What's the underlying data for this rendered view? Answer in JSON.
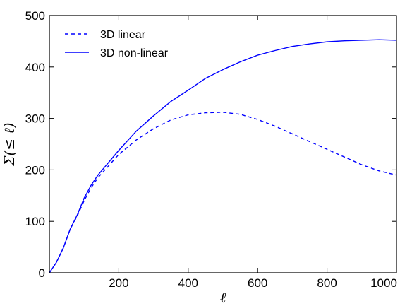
{
  "chart_data": {
    "type": "line",
    "title": "",
    "xlabel": "ℓ",
    "ylabel": "Σ(≤ ℓ)",
    "xlim": [
      0,
      1000
    ],
    "ylim": [
      0,
      500
    ],
    "x_ticks": [
      200,
      400,
      600,
      800,
      1000
    ],
    "y_ticks": [
      0,
      100,
      200,
      300,
      400,
      500
    ],
    "grid": false,
    "legend_position": "top-left",
    "colors": {
      "series": "#0000ff",
      "axes": "#000000"
    },
    "series": [
      {
        "name": "3D linear",
        "style": "dashed",
        "x": [
          0,
          20,
          40,
          60,
          80,
          100,
          120,
          140,
          160,
          180,
          200,
          250,
          300,
          350,
          400,
          450,
          500,
          550,
          600,
          650,
          700,
          750,
          800,
          850,
          900,
          950,
          1000
        ],
        "y": [
          0,
          20,
          48,
          85,
          110,
          140,
          165,
          185,
          200,
          215,
          230,
          258,
          280,
          297,
          307,
          311,
          312,
          308,
          298,
          285,
          270,
          255,
          240,
          225,
          210,
          198,
          190
        ]
      },
      {
        "name": "3D non-linear",
        "style": "solid",
        "x": [
          0,
          20,
          40,
          60,
          80,
          100,
          120,
          140,
          160,
          180,
          200,
          250,
          300,
          350,
          400,
          450,
          500,
          550,
          600,
          650,
          700,
          750,
          800,
          850,
          900,
          950,
          1000
        ],
        "y": [
          0,
          20,
          48,
          85,
          112,
          145,
          170,
          190,
          206,
          222,
          238,
          275,
          305,
          333,
          355,
          378,
          395,
          410,
          423,
          432,
          440,
          445,
          449,
          451,
          452,
          453,
          452
        ]
      }
    ]
  }
}
